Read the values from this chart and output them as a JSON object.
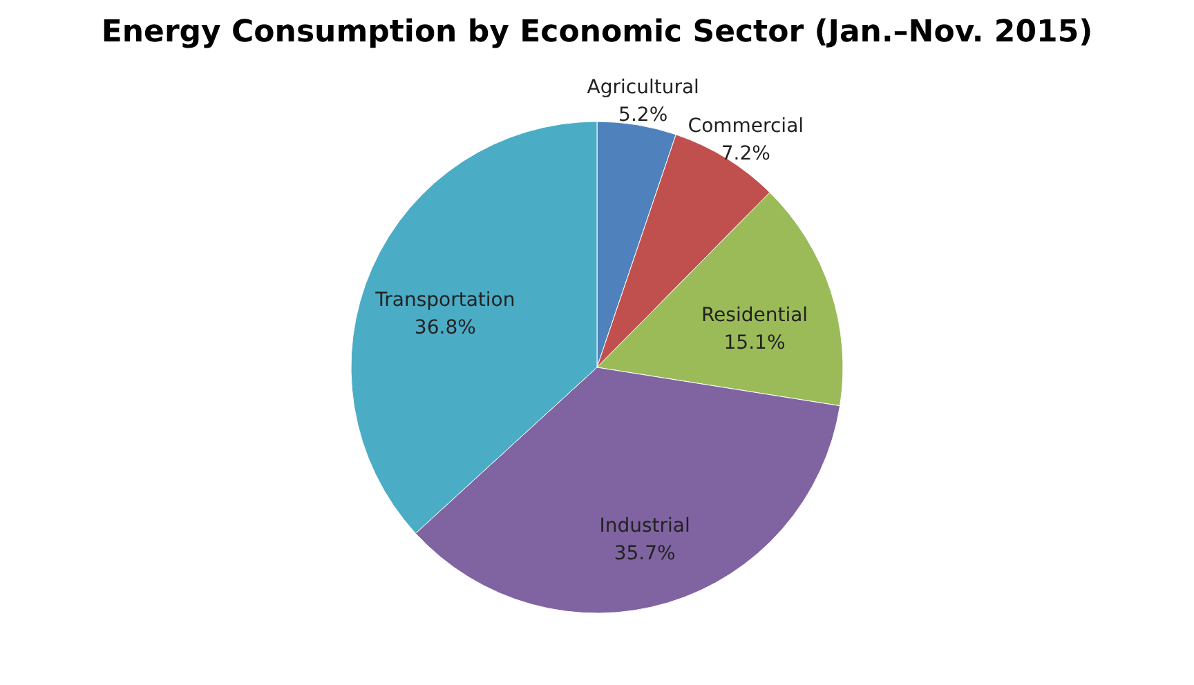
{
  "chart_data": {
    "type": "pie",
    "title": "Energy Consumption by Economic Sector (Jan.–Nov. 2015)",
    "categories": [
      "Agricultural",
      "Commercial",
      "Residential",
      "Industrial",
      "Transportation"
    ],
    "values": [
      5.2,
      7.2,
      15.1,
      35.7,
      36.8
    ],
    "colors": [
      "#4f81bd",
      "#c0504d",
      "#9bbb59",
      "#8064a2",
      "#4bacc6"
    ],
    "value_labels": [
      "5.2%",
      "7.2%",
      "15.1%",
      "35.7%",
      "36.8%"
    ],
    "legend": false
  }
}
